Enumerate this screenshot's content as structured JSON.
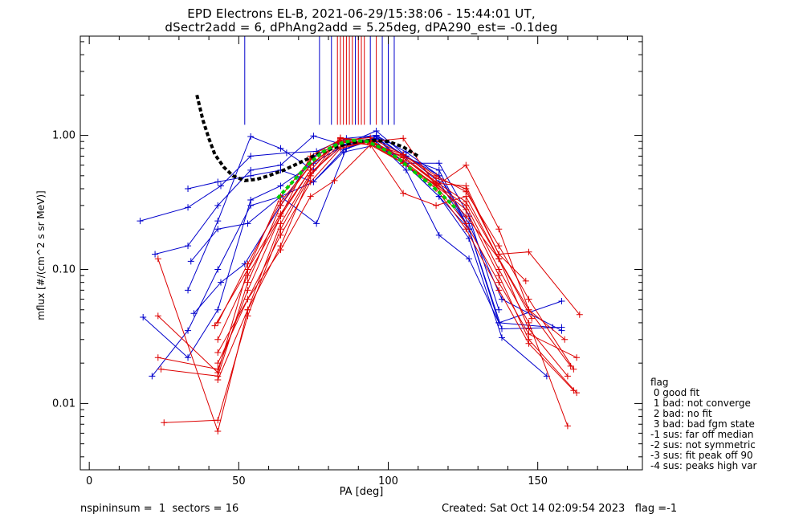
{
  "header": {
    "title_line1": "EPD Electrons EL-B, 2021-06-29/15:38:06 - 15:44:01 UT,",
    "title_line2": "dSectr2add = 6, dPhAng2add = 5.25deg, dPA290_est=  -0.1deg"
  },
  "footer": {
    "left": "nspininsum =  1  sectors = 16",
    "right": "Created: Sat Oct 14 02:09:54 2023   flag =-1"
  },
  "legend": {
    "title": "flag",
    "items": [
      " 0 good fit",
      " 1 bad: not converge",
      " 2 bad: no fit",
      " 3 bad: bad fgm state",
      "-1 sus: far off median",
      "-2 sus: not symmetric",
      "-3 sus: fit peak off 90",
      "-4 sus: peaks high var"
    ]
  },
  "chart_data": {
    "type": "line",
    "xlabel": "PA [deg]",
    "ylabel": "mflux [#/(cm^2 s sr MeV)]",
    "xlim": [
      -3,
      185
    ],
    "ylim": [
      0.0032,
      5.5
    ],
    "yscale": "log",
    "x_ticks": [
      0,
      50,
      100,
      150
    ],
    "y_ticks": [
      0.01,
      0.1,
      1.0
    ],
    "y_tick_labels": [
      "0.01",
      "0.10",
      "1.00"
    ],
    "colors": {
      "blue": "#0000cc",
      "red": "#dd0000",
      "black": "#000000",
      "green": "#00cc00"
    },
    "vertical_markers": [
      {
        "x": 52,
        "color": "blue"
      },
      {
        "x": 77,
        "color": "blue"
      },
      {
        "x": 81,
        "color": "blue"
      },
      {
        "x": 83,
        "color": "red"
      },
      {
        "x": 84,
        "color": "red"
      },
      {
        "x": 85,
        "color": "red"
      },
      {
        "x": 86,
        "color": "red"
      },
      {
        "x": 87,
        "color": "red"
      },
      {
        "x": 88,
        "color": "red"
      },
      {
        "x": 89,
        "color": "blue"
      },
      {
        "x": 90,
        "color": "red"
      },
      {
        "x": 91,
        "color": "red"
      },
      {
        "x": 92,
        "color": "red"
      },
      {
        "x": 94,
        "color": "blue"
      },
      {
        "x": 96,
        "color": "red"
      },
      {
        "x": 98,
        "color": "blue"
      },
      {
        "x": 100,
        "color": "blue"
      },
      {
        "x": 102,
        "color": "blue"
      }
    ],
    "series": [
      {
        "color": "blue",
        "x": [
          17,
          33,
          44,
          54,
          66,
          76,
          86,
          96,
          106,
          117,
          127
        ],
        "y": [
          0.23,
          0.29,
          0.42,
          0.7,
          0.74,
          0.76,
          0.95,
          1.0,
          0.68,
          0.55,
          0.2
        ]
      },
      {
        "color": "blue",
        "x": [
          22,
          33,
          43,
          54,
          64,
          75,
          85,
          96,
          106,
          117,
          127,
          137,
          158
        ],
        "y": [
          0.13,
          0.15,
          0.3,
          0.55,
          0.6,
          0.99,
          0.85,
          0.9,
          0.55,
          0.18,
          0.12,
          0.04,
          0.058
        ]
      },
      {
        "color": "blue",
        "x": [
          18,
          33,
          43,
          54,
          64,
          75,
          85,
          96,
          106,
          117,
          127,
          137,
          155
        ],
        "y": [
          0.044,
          0.022,
          0.05,
          0.33,
          0.42,
          0.62,
          0.84,
          0.95,
          0.7,
          0.5,
          0.2,
          0.04,
          0.037
        ]
      },
      {
        "color": "blue",
        "x": [
          21,
          33,
          43,
          54,
          64,
          75,
          85,
          96,
          106,
          117,
          127,
          138,
          153
        ],
        "y": [
          0.016,
          0.035,
          0.1,
          0.3,
          0.35,
          0.45,
          0.78,
          0.95,
          0.6,
          0.35,
          0.17,
          0.031,
          0.016
        ]
      },
      {
        "color": "blue",
        "x": [
          33,
          43,
          54,
          64,
          75,
          85,
          96,
          106,
          117,
          127,
          138,
          158
        ],
        "y": [
          0.07,
          0.23,
          0.98,
          0.8,
          0.55,
          0.85,
          1.08,
          0.7,
          0.45,
          0.2,
          0.036,
          0.037
        ]
      },
      {
        "color": "blue",
        "x": [
          33,
          43,
          54,
          64,
          75,
          85,
          96,
          106,
          117,
          127,
          137
        ],
        "y": [
          0.4,
          0.45,
          0.5,
          0.55,
          0.45,
          0.75,
          0.85,
          0.62,
          0.62,
          0.25,
          0.05
        ]
      },
      {
        "color": "blue",
        "x": [
          34,
          43,
          53,
          64,
          76,
          86,
          96,
          106,
          117,
          127
        ],
        "y": [
          0.115,
          0.2,
          0.22,
          0.35,
          0.22,
          0.8,
          0.98,
          0.6,
          0.35,
          0.2
        ]
      },
      {
        "color": "blue",
        "x": [
          35,
          44,
          52,
          64,
          75,
          85,
          96,
          106,
          117,
          127,
          138,
          158
        ],
        "y": [
          0.047,
          0.08,
          0.11,
          0.3,
          0.7,
          0.9,
          1.0,
          0.75,
          0.5,
          0.22,
          0.06,
          0.035
        ]
      },
      {
        "color": "red",
        "x": [
          23,
          43,
          53,
          64,
          74,
          84,
          94,
          105,
          116,
          126,
          137,
          147,
          161
        ],
        "y": [
          0.045,
          0.017,
          0.1,
          0.35,
          0.66,
          0.9,
          0.85,
          0.7,
          0.45,
          0.25,
          0.12,
          0.05,
          0.019
        ]
      },
      {
        "color": "red",
        "x": [
          23,
          43,
          53,
          64,
          74,
          84,
          94,
          105,
          116,
          126,
          137,
          147,
          162
        ],
        "y": [
          0.12,
          0.0062,
          0.05,
          0.15,
          0.5,
          0.88,
          0.9,
          0.62,
          0.4,
          0.2,
          0.07,
          0.028,
          0.0125
        ]
      },
      {
        "color": "red",
        "x": [
          23,
          43,
          53,
          64,
          74,
          84,
          94,
          105,
          116,
          126,
          137,
          147,
          163
        ],
        "y": [
          0.022,
          0.018,
          0.07,
          0.25,
          0.55,
          0.95,
          0.92,
          0.65,
          0.42,
          0.22,
          0.08,
          0.033,
          0.022
        ]
      },
      {
        "color": "red",
        "x": [
          25,
          43,
          53,
          64,
          74,
          84,
          94,
          105,
          116,
          126,
          137,
          147,
          160
        ],
        "y": [
          0.0072,
          0.0075,
          0.045,
          0.2,
          0.5,
          0.96,
          0.87,
          0.62,
          0.43,
          0.3,
          0.1,
          0.04,
          0.0068
        ]
      },
      {
        "color": "red",
        "x": [
          24,
          43,
          53,
          64,
          74,
          84,
          94,
          105,
          116,
          126,
          137,
          147,
          162
        ],
        "y": [
          0.018,
          0.016,
          0.08,
          0.3,
          0.6,
          0.9,
          0.88,
          0.72,
          0.5,
          0.38,
          0.15,
          0.06,
          0.018
        ]
      },
      {
        "color": "red",
        "x": [
          42,
          53,
          64,
          74,
          84,
          94,
          105,
          116,
          126,
          137,
          147,
          164
        ],
        "y": [
          0.038,
          0.1,
          0.26,
          0.55,
          0.95,
          0.92,
          0.68,
          0.44,
          0.42,
          0.13,
          0.135,
          0.046
        ]
      },
      {
        "color": "red",
        "x": [
          43,
          53,
          64,
          74,
          84,
          94,
          105,
          116,
          126,
          137,
          147,
          159
        ],
        "y": [
          0.03,
          0.09,
          0.25,
          0.7,
          0.93,
          0.85,
          0.62,
          0.42,
          0.6,
          0.2,
          0.05,
          0.03
        ]
      },
      {
        "color": "red",
        "x": [
          43,
          53,
          64,
          74,
          82,
          94,
          105,
          116,
          126,
          137,
          147,
          160
        ],
        "y": [
          0.024,
          0.06,
          0.14,
          0.35,
          0.46,
          0.85,
          0.37,
          0.3,
          0.35,
          0.12,
          0.036,
          0.016
        ]
      },
      {
        "color": "red",
        "x": [
          43,
          53,
          64,
          74,
          84,
          94,
          105,
          116,
          126,
          137,
          147,
          163
        ],
        "y": [
          0.02,
          0.06,
          0.18,
          0.45,
          0.8,
          0.9,
          0.95,
          0.42,
          0.28,
          0.09,
          0.03,
          0.012
        ]
      },
      {
        "color": "red",
        "x": [
          43,
          53,
          64,
          74,
          84,
          94,
          105,
          116,
          126,
          137,
          146
        ],
        "y": [
          0.04,
          0.11,
          0.32,
          0.6,
          0.92,
          0.96,
          0.72,
          0.48,
          0.4,
          0.13,
          0.082
        ]
      },
      {
        "color": "red",
        "x": [
          43,
          53,
          64,
          74,
          84,
          94,
          105,
          116,
          126,
          137,
          148
        ],
        "y": [
          0.015,
          0.05,
          0.22,
          0.52,
          0.82,
          0.9,
          0.68,
          0.45,
          0.32,
          0.12,
          0.043
        ]
      }
    ],
    "overlays": [
      {
        "color": "black",
        "style": "dashed",
        "x": [
          36,
          38,
          40,
          42,
          45,
          48,
          52,
          56,
          60,
          65,
          70,
          75,
          80,
          85,
          90,
          95,
          100,
          105,
          110
        ],
        "y": [
          2.0,
          1.3,
          0.95,
          0.72,
          0.58,
          0.5,
          0.46,
          0.47,
          0.5,
          0.55,
          0.62,
          0.7,
          0.78,
          0.85,
          0.9,
          0.92,
          0.9,
          0.82,
          0.7
        ]
      },
      {
        "color": "green",
        "style": "dashed",
        "x": [
          63,
          68,
          73,
          78,
          83,
          88,
          93,
          98,
          103,
          108,
          113,
          118,
          123
        ],
        "y": [
          0.34,
          0.45,
          0.6,
          0.75,
          0.86,
          0.92,
          0.9,
          0.8,
          0.68,
          0.55,
          0.45,
          0.36,
          0.28
        ]
      }
    ]
  }
}
